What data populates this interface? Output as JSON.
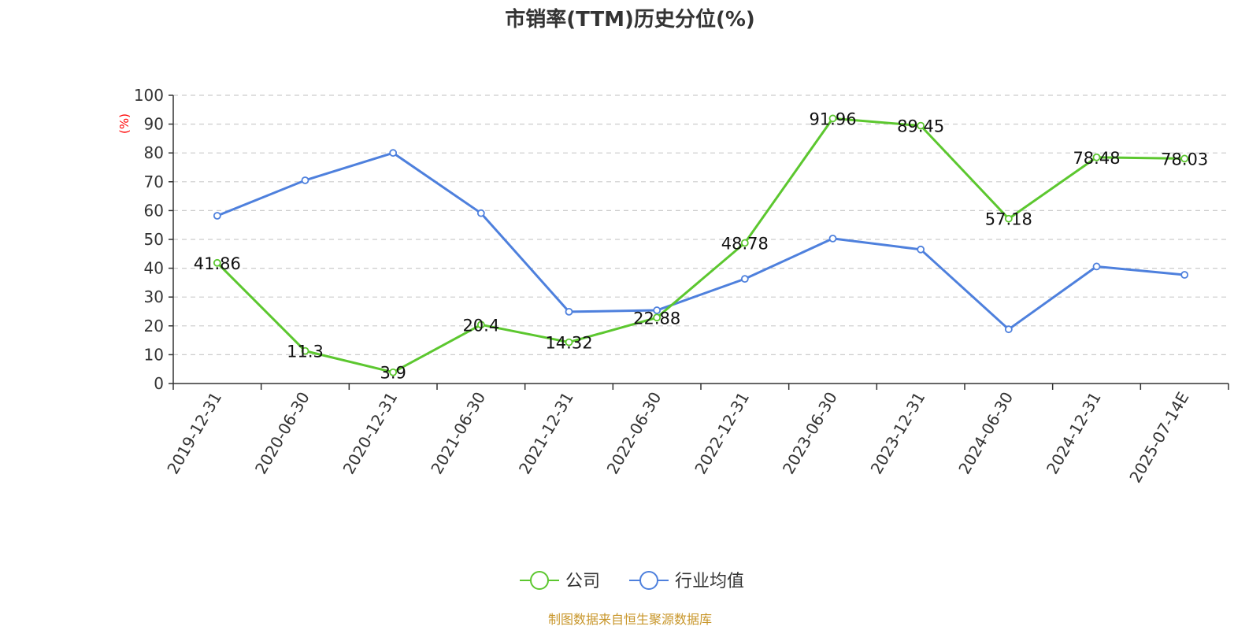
{
  "chart_data": {
    "type": "line",
    "title": "市销率(TTM)历史分位(%)",
    "ylabel": "(%)",
    "xlabel": "",
    "ylim": [
      0,
      100
    ],
    "y_ticks": [
      "0",
      "10",
      "20",
      "30",
      "40",
      "50",
      "60",
      "70",
      "80",
      "90",
      "100"
    ],
    "grid": true,
    "legend_position": "bottom-center",
    "categories": [
      "2019-12-31",
      "2020-06-30",
      "2020-12-31",
      "2021-06-30",
      "2021-12-31",
      "2022-06-30",
      "2022-12-31",
      "2023-06-30",
      "2023-12-31",
      "2024-06-30",
      "2024-12-31",
      "2025-07-14E"
    ],
    "series": [
      {
        "name": "公司",
        "color": "#5cc72f",
        "values": [
          41.86,
          11.3,
          3.9,
          20.4,
          14.32,
          22.88,
          48.78,
          91.96,
          89.45,
          57.18,
          78.48,
          78.03
        ],
        "data_labels": [
          "41.86",
          "11.3",
          "3.9",
          "20.4",
          "14.32",
          "22.88",
          "48.78",
          "91.96",
          "89.45",
          "57.18",
          "78.48",
          "78.03"
        ]
      },
      {
        "name": "行业均值",
        "color": "#4e80dd",
        "values": [
          58.2,
          70.5,
          80.0,
          59.1,
          24.9,
          25.4,
          36.3,
          50.3,
          46.5,
          18.8,
          40.6,
          37.7
        ]
      }
    ],
    "source": "制图数据来自恒生聚源数据库",
    "colors": {
      "unit_label": "#ff0000",
      "source_text": "#c8962a",
      "grid": "#cccccc",
      "axis": "#333333"
    }
  }
}
